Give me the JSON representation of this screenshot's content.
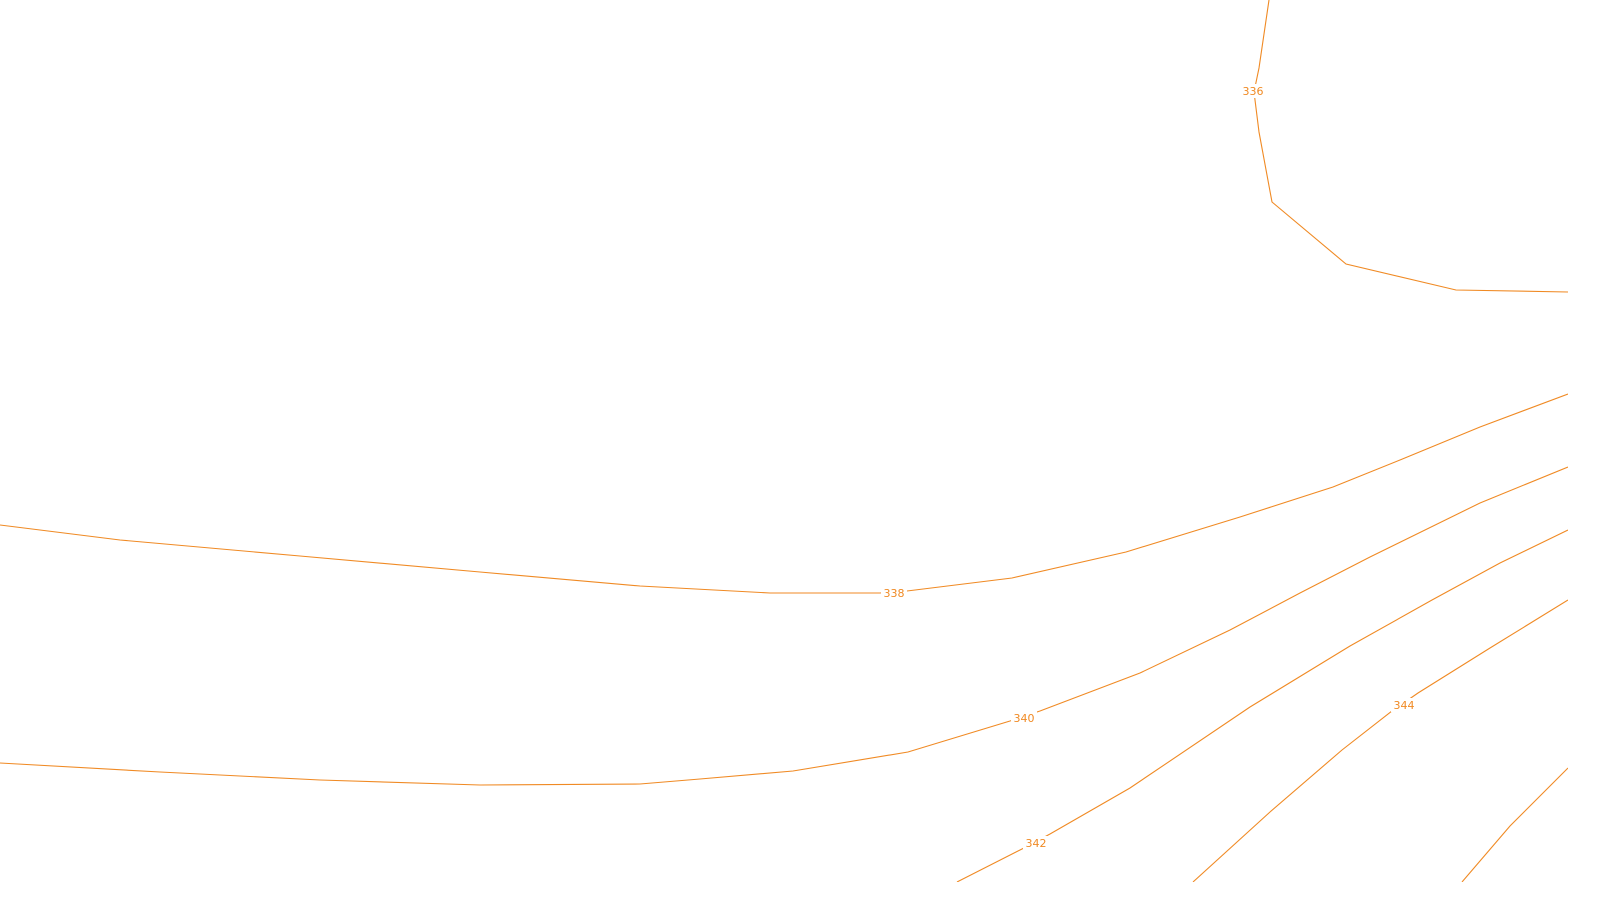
{
  "map": {
    "line_color": "#f08a24",
    "background": "#ffffff",
    "contours": [
      {
        "id": "c336",
        "label": "336"
      },
      {
        "id": "c338",
        "label": "338"
      },
      {
        "id": "c340",
        "label": "340"
      },
      {
        "id": "c342",
        "label": "342"
      },
      {
        "id": "c343",
        "label": ""
      },
      {
        "id": "c344",
        "label": "344"
      },
      {
        "id": "c345",
        "label": ""
      }
    ]
  }
}
